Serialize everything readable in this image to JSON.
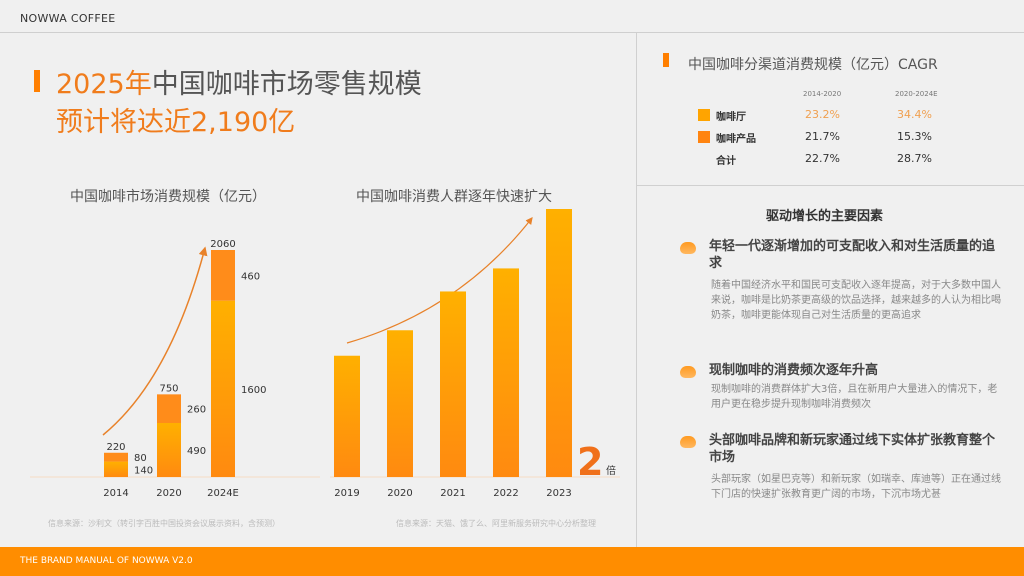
{
  "header": {
    "brand": "NOWWA COFFEE"
  },
  "title": {
    "year_part": "2025年",
    "rest": "中国咖啡市场零售规模",
    "line2": "预计将达近2,190亿"
  },
  "colors": {
    "accent": "#ff7f00",
    "bar_top": "#ffb000",
    "bar_bottom": "#ff8a10",
    "segment_top": "#ff8c1a",
    "footer": "#ff8d00"
  },
  "chart_data": [
    {
      "type": "bar",
      "stacked": true,
      "title": "中国咖啡市场消费规模（亿元）",
      "categories": [
        "2014",
        "2020",
        "2024E"
      ],
      "series": [
        {
          "values": [
            140,
            490,
            1600
          ]
        },
        {
          "values": [
            80,
            260,
            460
          ]
        }
      ],
      "totals": [
        "220",
        "750",
        "2060"
      ],
      "segment_labels": [
        [
          "140",
          "80"
        ],
        [
          "490",
          "260"
        ],
        [
          "1600",
          "460"
        ]
      ],
      "source": "信息来源：沙利文（转引字百胜中国投资会议展示资料，含预测）"
    },
    {
      "type": "bar",
      "title": "中国咖啡消费人群逐年快速扩大",
      "categories": [
        "2019",
        "2020",
        "2021",
        "2022",
        "2023"
      ],
      "values": [
        1.0,
        1.21,
        1.53,
        1.72,
        2.21
      ],
      "annotation": {
        "number": "2",
        "unit": "倍"
      },
      "source": "信息来源：天猫、饿了么、阿里新服务研究中心分析整理"
    }
  ],
  "cagr": {
    "title": "中国咖啡分渠道消费规模（亿元）CAGR",
    "columns": [
      "2014-2020",
      "2020-2024E"
    ],
    "rows": [
      {
        "label": "咖啡厅",
        "swatch": "#ffa400",
        "values": [
          "23.2%",
          "34.4%"
        ],
        "highlight": true
      },
      {
        "label": "咖啡产品",
        "swatch": "#ff8410",
        "values": [
          "21.7%",
          "15.3%"
        ]
      },
      {
        "label": "合计",
        "values": [
          "22.7%",
          "28.7%"
        ]
      }
    ]
  },
  "drivers": {
    "title": "驱动增长的主要因素",
    "items": [
      {
        "heading": "年轻一代逐渐增加的可支配收入和对生活质量的追求",
        "text": "随着中国经济水平和国民可支配收入逐年提高，对于大多数中国人来说，咖啡是比奶茶更高级的饮品选择，越来越多的人认为相比喝奶茶，咖啡更能体现自己对生活质量的更高追求"
      },
      {
        "heading": "现制咖啡的消费频次逐年升高",
        "text": "现制咖啡的消费群体扩大3倍，且在新用户大量进入的情况下，老用户更在稳步提升现制咖啡消费频次"
      },
      {
        "heading": "头部咖啡品牌和新玩家通过线下实体扩张教育整个市场",
        "text": "头部玩家（如星巴克等）和新玩家（如瑞幸、库迪等）正在通过线下门店的快速扩张教育更广阔的市场，下沉市场尤甚"
      }
    ]
  },
  "footer": {
    "text": "THE BRAND  MANUAL  OF NOWWA V2.0"
  }
}
